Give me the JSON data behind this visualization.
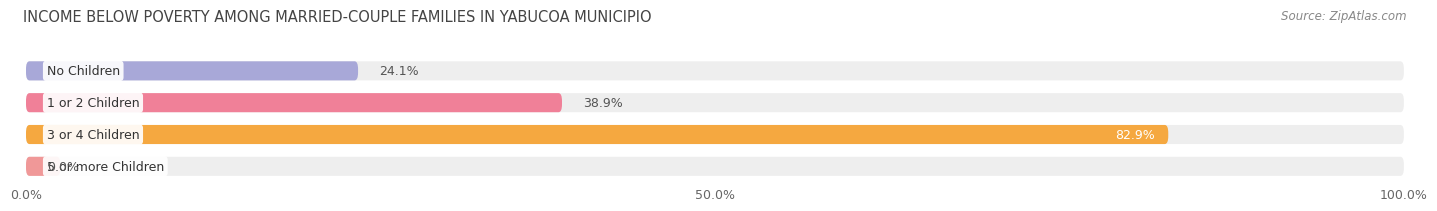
{
  "title": "INCOME BELOW POVERTY AMONG MARRIED-COUPLE FAMILIES IN YABUCOA MUNICIPIO",
  "source": "Source: ZipAtlas.com",
  "categories": [
    "No Children",
    "1 or 2 Children",
    "3 or 4 Children",
    "5 or more Children"
  ],
  "values": [
    24.1,
    38.9,
    82.9,
    0.0
  ],
  "bar_colors": [
    "#a8a8d8",
    "#f08098",
    "#f5a840",
    "#f09898"
  ],
  "xlim": [
    0,
    100
  ],
  "xtick_labels": [
    "0.0%",
    "50.0%",
    "100.0%"
  ],
  "xtick_positions": [
    0,
    50,
    100
  ],
  "background_color": "#ffffff",
  "bar_background_color": "#eeeeee",
  "title_fontsize": 10.5,
  "source_fontsize": 8.5,
  "label_fontsize": 9,
  "value_fontsize": 9,
  "tick_fontsize": 9,
  "bar_height": 0.6,
  "value_label_0": "24.1%",
  "value_label_1": "38.9%",
  "value_label_2": "82.9%",
  "value_label_3": "0.0%"
}
